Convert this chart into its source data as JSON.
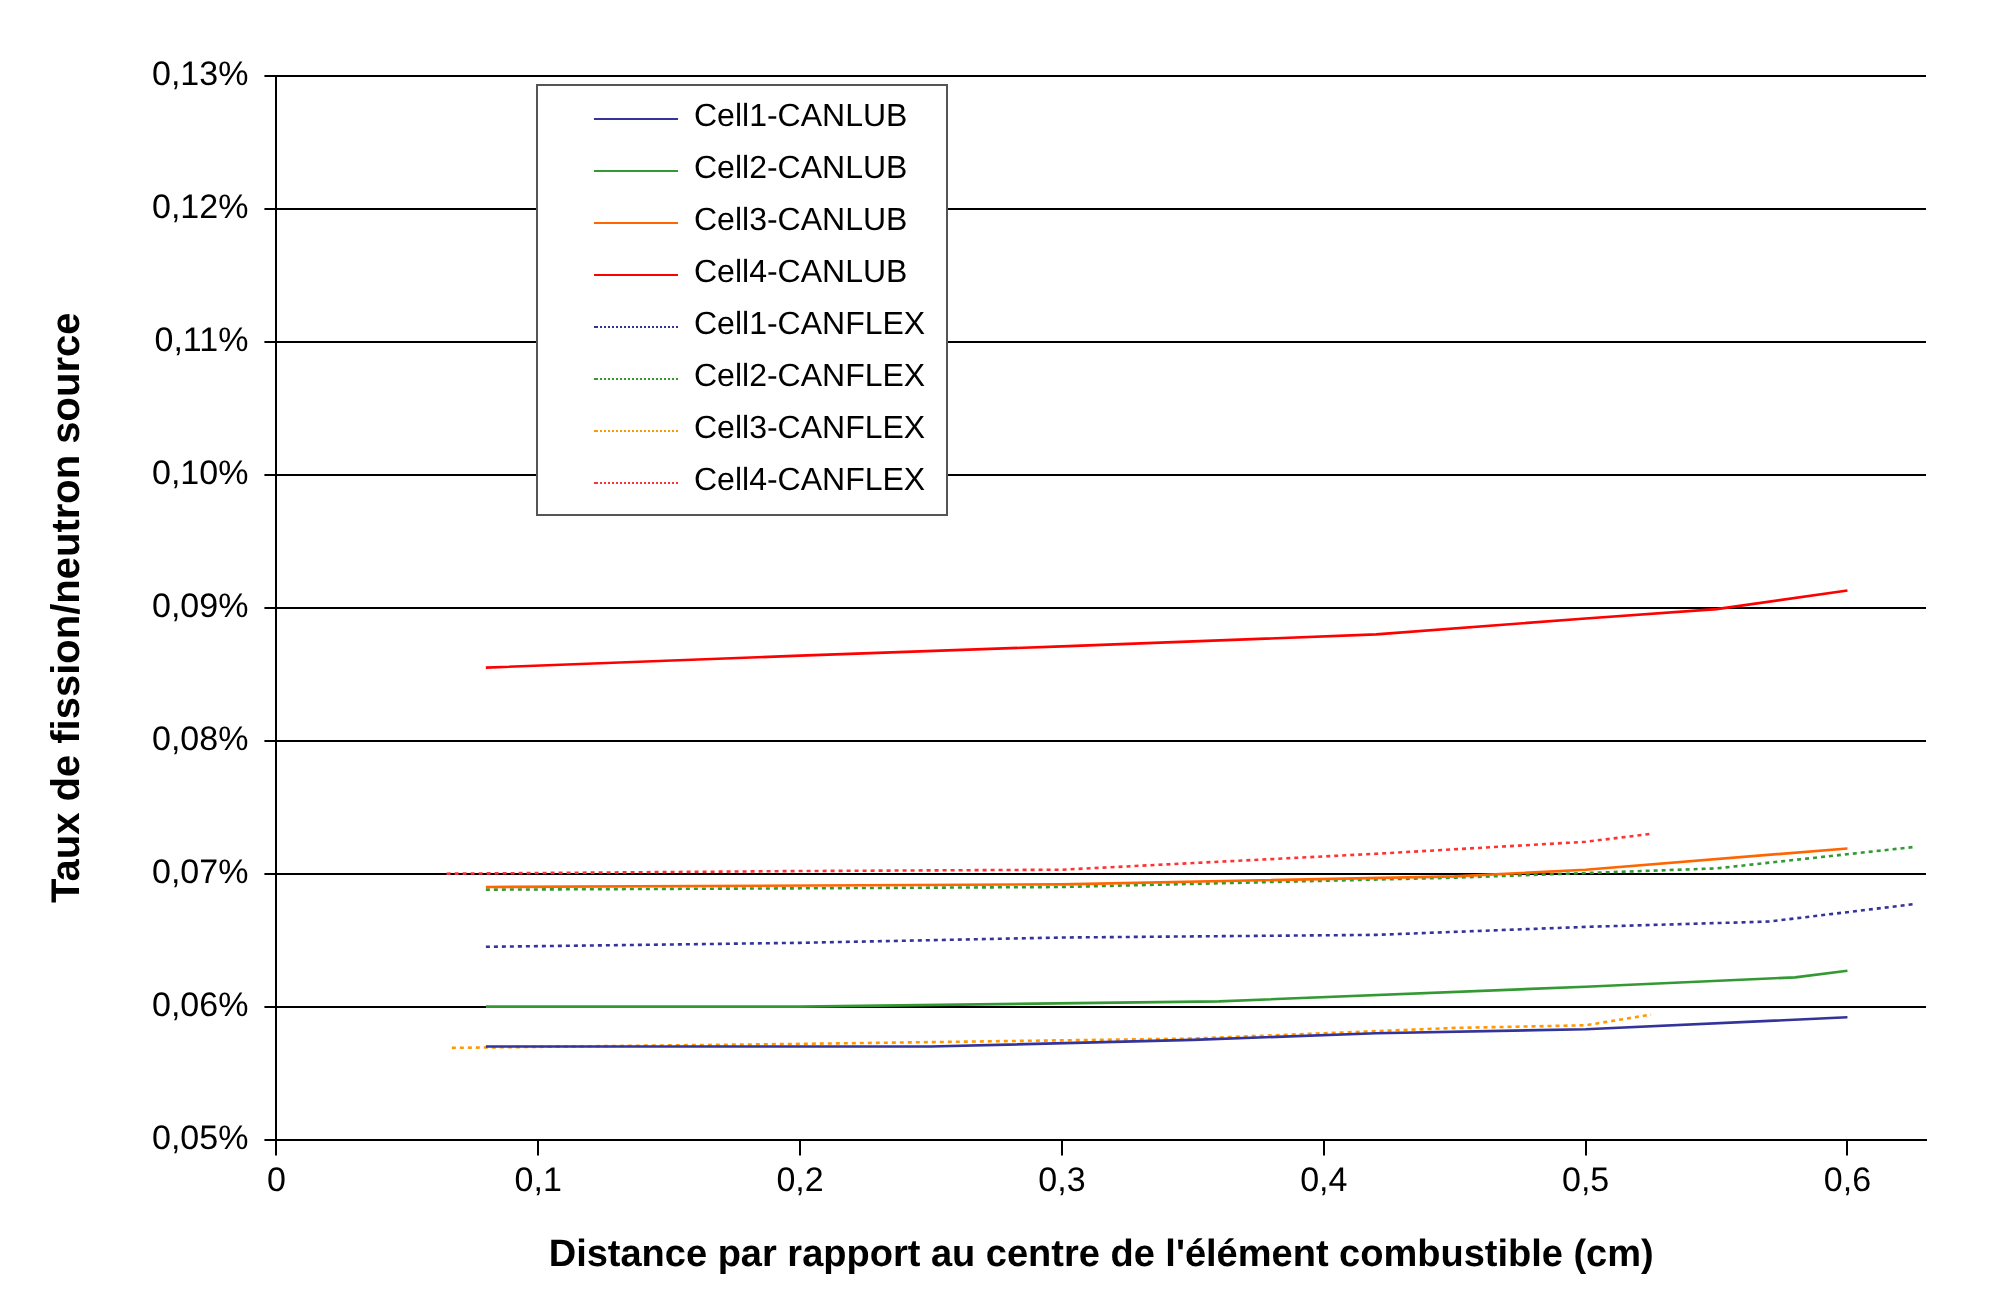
{
  "chart_data": {
    "type": "line",
    "xlabel": "Distance par rapport au centre de l'élément combustible (cm)",
    "ylabel": "Taux de fission/neutron source",
    "xlim": [
      0,
      0.63
    ],
    "xticks": [
      0,
      {
        "value": 0.1,
        "label": "0,1"
      },
      {
        "value": 0.2,
        "label": "0,2"
      },
      {
        "value": 0.3,
        "label": "0,3"
      },
      {
        "value": 0.4,
        "label": "0,4"
      },
      {
        "value": 0.5,
        "label": "0,5"
      },
      {
        "value": 0.6,
        "label": "0,6"
      }
    ],
    "ylim": [
      0.05,
      0.13
    ],
    "yticks": [
      {
        "value": 0.05,
        "label": "0,05%"
      },
      {
        "value": 0.06,
        "label": "0,06%"
      },
      {
        "value": 0.07,
        "label": "0,07%"
      },
      {
        "value": 0.08,
        "label": "0,08%"
      },
      {
        "value": 0.09,
        "label": "0,09%"
      },
      {
        "value": 0.1,
        "label": "0,10%"
      },
      {
        "value": 0.11,
        "label": "0,11%"
      },
      {
        "value": 0.12,
        "label": "0,12%"
      },
      {
        "value": 0.13,
        "label": "0,13%"
      }
    ],
    "grid": "y",
    "legend": "top left",
    "marker": "none",
    "series": [
      {
        "name": "Cell1-CANLUB",
        "color": "#333399",
        "line_style": "solid",
        "x": [
          0.08,
          0.25,
          0.35,
          0.42,
          0.5,
          0.6
        ],
        "values": [
          0.057,
          0.057,
          0.0575,
          0.058,
          0.0583,
          0.0592
        ]
      },
      {
        "name": "Cell2-CANLUB",
        "color": "#339933",
        "line_style": "solid",
        "x": [
          0.08,
          0.2,
          0.36,
          0.5,
          0.58,
          0.6
        ],
        "values": [
          0.06,
          0.06,
          0.0604,
          0.0615,
          0.0622,
          0.0627
        ]
      },
      {
        "name": "Cell3-CANLUB",
        "color": "#ff6600",
        "line_style": "solid",
        "x": [
          0.08,
          0.3,
          0.45,
          0.5,
          0.6
        ],
        "values": [
          0.069,
          0.0692,
          0.0698,
          0.0703,
          0.0719
        ]
      },
      {
        "name": "Cell4-CANLUB",
        "color": "#ff0000",
        "line_style": "solid",
        "x": [
          0.08,
          0.2,
          0.3,
          0.42,
          0.5,
          0.55,
          0.6
        ],
        "values": [
          0.0855,
          0.0864,
          0.0871,
          0.088,
          0.0892,
          0.0899,
          0.0913
        ]
      },
      {
        "name": "Cell1-CANFLEX",
        "color": "#333399",
        "line_style": "dotted",
        "x": [
          0.08,
          0.2,
          0.3,
          0.42,
          0.5,
          0.57,
          0.625
        ],
        "values": [
          0.0645,
          0.0648,
          0.0652,
          0.0654,
          0.066,
          0.0664,
          0.0677
        ]
      },
      {
        "name": "Cell2-CANFLEX",
        "color": "#339933",
        "line_style": "dotted",
        "x": [
          0.08,
          0.2,
          0.3,
          0.45,
          0.55,
          0.625
        ],
        "values": [
          0.0688,
          0.0689,
          0.069,
          0.0697,
          0.0704,
          0.072
        ]
      },
      {
        "name": "Cell3-CANFLEX",
        "color": "#ff9900",
        "line_style": "dotted",
        "x": [
          0.067,
          0.2,
          0.35,
          0.45,
          0.5,
          0.525
        ],
        "values": [
          0.0569,
          0.0572,
          0.0576,
          0.0584,
          0.0586,
          0.0594
        ]
      },
      {
        "name": "Cell4-CANFLEX",
        "color": "#ff3333",
        "line_style": "dotted",
        "x": [
          0.065,
          0.2,
          0.3,
          0.35,
          0.42,
          0.5,
          0.525
        ],
        "values": [
          0.07,
          0.0702,
          0.0703,
          0.0708,
          0.0715,
          0.0724,
          0.073
        ]
      }
    ]
  }
}
